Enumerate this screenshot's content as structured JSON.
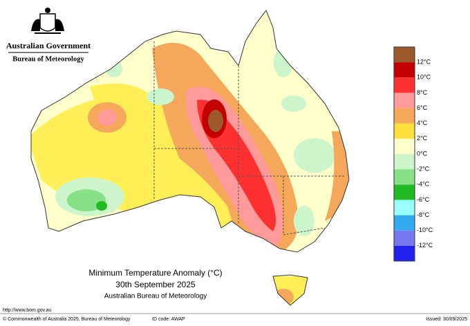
{
  "header": {
    "government": "Australian Government",
    "agency": "Bureau of Meteorology"
  },
  "map": {
    "title": "Minimum Temperature Anomaly (°C)",
    "date": "30th September 2025",
    "source": "Australian Bureau of Meteorology"
  },
  "legend": {
    "colors": [
      "#9c5a2c",
      "#c40000",
      "#ff3030",
      "#ff9a9a",
      "#f5a85a",
      "#ffdf3a",
      "#ffffcc",
      "#ccf5cc",
      "#88e088",
      "#22bb22",
      "#99ffff",
      "#33aaee",
      "#7777ee",
      "#2222ee"
    ],
    "labels": [
      "12°C",
      "10°C",
      "8°C",
      "6°C",
      "4°C",
      "2°C",
      "0°C",
      "-2°C",
      "-4°C",
      "-6°C",
      "-8°C",
      "-10°C",
      "-12°C"
    ]
  },
  "footer": {
    "url": "http://www.bom.gov.au",
    "copyright": "© Commonwealth of Australia 2025, Bureau of Meteorology",
    "id_code": "ID code: AWAP",
    "issued": "Issued: 30/09/2025"
  }
}
